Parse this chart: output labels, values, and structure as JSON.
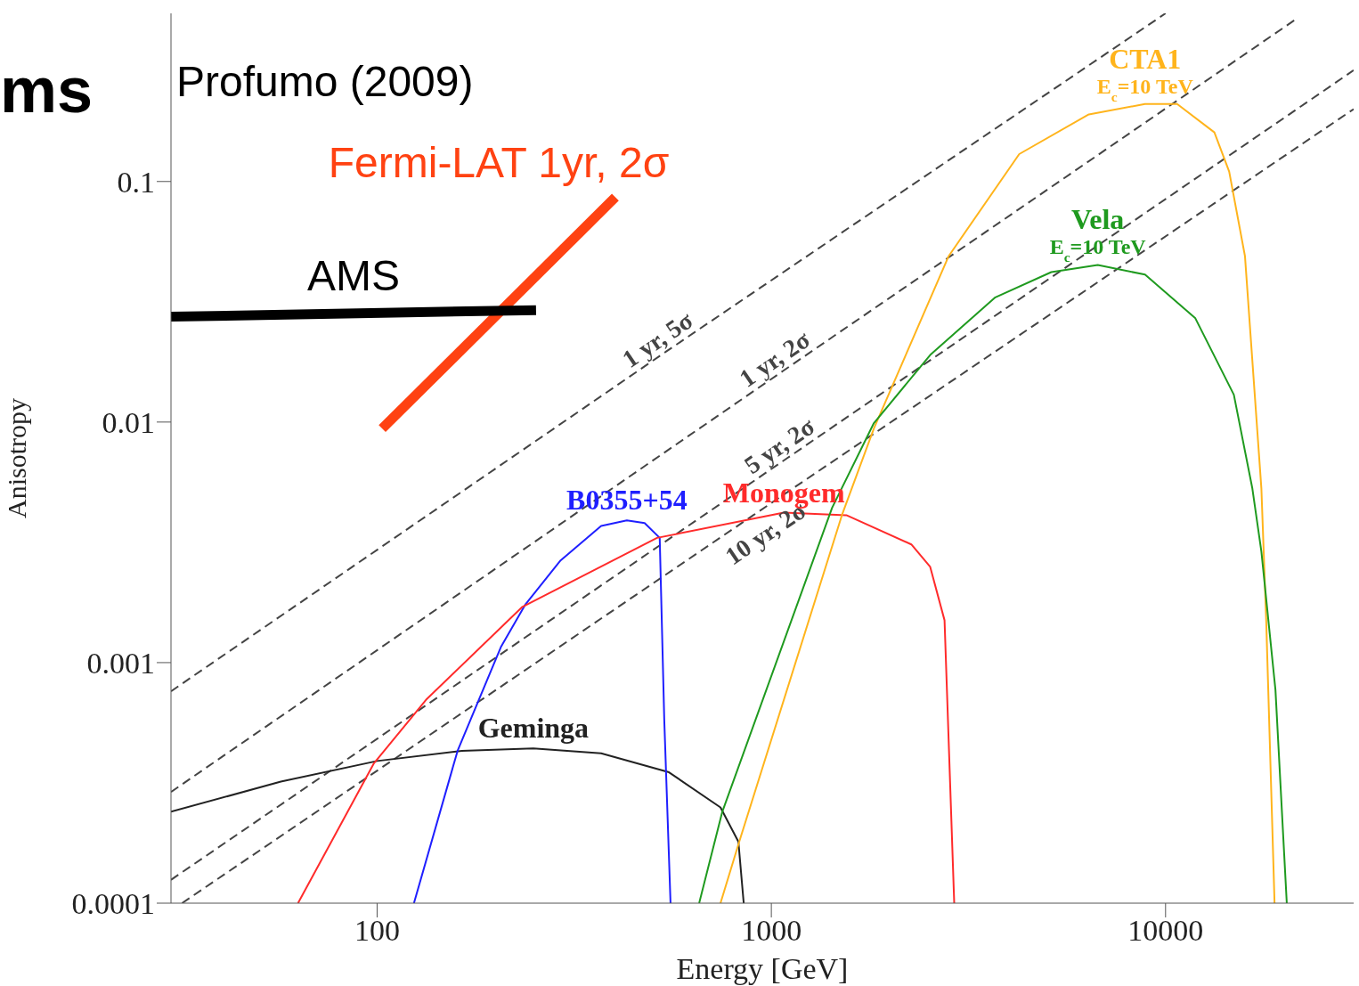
{
  "chart_data": {
    "type": "line",
    "xlabel": "Energy [GeV]",
    "ylabel": "Anisotropy",
    "log": "xy",
    "marker": "none",
    "xlim": [
      30,
      30000
    ],
    "ylim": [
      0.0001,
      0.5
    ],
    "xticks": [
      100,
      1000,
      10000
    ],
    "yticks": [
      0.0001,
      0.001,
      0.01,
      0.1
    ],
    "series": [
      {
        "name": "1 yr, 5σ",
        "color": "#444444",
        "line_style": "dashed",
        "x": [
          30,
          540,
          10000
        ],
        "values": [
          0.00076,
          0.0196,
          0.5
        ]
      },
      {
        "name": "1 yr, 2σ",
        "color": "#444444",
        "line_style": "dashed",
        "x": [
          30,
          1070,
          21700
        ],
        "values": [
          0.00029,
          0.0163,
          0.48
        ]
      },
      {
        "name": "5 yr, 2σ",
        "color": "#444444",
        "line_style": "dashed",
        "x": [
          30,
          1100,
          30000
        ],
        "values": [
          0.000125,
          0.0071,
          0.29
        ]
      },
      {
        "name": "10 yr, 2σ",
        "color": "#444444",
        "line_style": "dashed",
        "x": [
          32,
          900,
          30000
        ],
        "values": [
          0.0001,
          0.0041,
          0.2
        ]
      },
      {
        "name": "Geminga",
        "color": "#222222",
        "x": [
          30,
          57,
          100,
          164,
          249,
          370,
          550,
          743,
          825,
          851
        ],
        "values": [
          0.00024,
          0.00032,
          0.00039,
          0.00043,
          0.00044,
          0.00042,
          0.00035,
          0.00025,
          0.00018,
          0.0001
        ]
      },
      {
        "name": "B0355+54",
        "color": "#1f1fff",
        "x": [
          124,
          160,
          206,
          238,
          292,
          370,
          430,
          477,
          521,
          535,
          555
        ],
        "values": [
          0.0001,
          0.00043,
          0.00116,
          0.00175,
          0.00266,
          0.0037,
          0.0039,
          0.0038,
          0.0033,
          0.00058,
          0.0001
        ]
      },
      {
        "name": "Monogem",
        "color": "#ff2b2b",
        "x": [
          63,
          98,
          133,
          233,
          513,
          1076,
          1550,
          2265,
          2529,
          2750,
          2910
        ],
        "values": [
          0.0001,
          0.00038,
          0.0007,
          0.0017,
          0.0033,
          0.0042,
          0.0041,
          0.0031,
          0.0025,
          0.0015,
          0.0001
        ]
      },
      {
        "name": "CTA1",
        "color": "#ffb41c",
        "x": [
          743,
          829,
          1510,
          1820,
          2818,
          4254,
          6388,
          8870,
          10700,
          13300,
          14500,
          15900,
          17500,
          18000,
          18900
        ],
        "values": [
          0.0001,
          0.00018,
          0.0041,
          0.0094,
          0.049,
          0.13,
          0.19,
          0.21,
          0.21,
          0.16,
          0.11,
          0.049,
          0.0053,
          0.0015,
          0.0001
        ]
      },
      {
        "name": "Vela",
        "color": "#1f9a1f",
        "x": [
          656,
          751,
          1426,
          1820,
          2529,
          3700,
          5130,
          6730,
          8870,
          11900,
          14900,
          16600,
          17500,
          19000,
          20300
        ],
        "values": [
          0.0001,
          0.00024,
          0.0044,
          0.0099,
          0.019,
          0.033,
          0.042,
          0.045,
          0.041,
          0.027,
          0.013,
          0.0053,
          0.0029,
          0.00077,
          0.0001
        ]
      },
      {
        "name": "Fermi-LAT 1yr, 2σ",
        "color": "#ff4212",
        "line_style": "solid",
        "x": [
          103,
          402
        ],
        "values": [
          0.0094,
          0.086
        ]
      },
      {
        "name": "AMS",
        "color": "#000000",
        "line_style": "solid",
        "x": [
          30,
          253
        ],
        "values": [
          0.0274,
          0.0292
        ]
      }
    ],
    "annotations": [
      "ms",
      "Profumo (2009)",
      {
        "text": "E$_{c}$=10 TeV",
        "x": 8870,
        "y": 0.21
      },
      {
        "text": "E$_{c}$=10 TeV",
        "x": 6730,
        "y": 0.045
      }
    ]
  }
}
